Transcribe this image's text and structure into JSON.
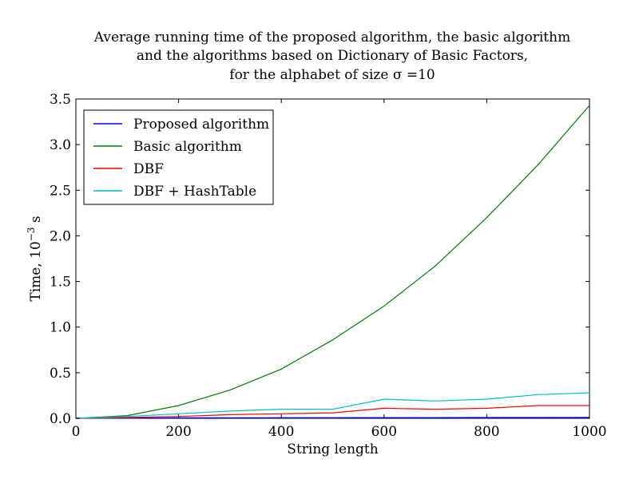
{
  "chart_data": {
    "type": "line",
    "title_lines": [
      "Average running time of the proposed algorithm, the basic algorithm",
      "and the algorithms based on Dictionary of Basic Factors,",
      "for the alphabet of size σ =10"
    ],
    "xlabel": "String length",
    "ylabel": "Time, 10",
    "ylabel_exponent": "−3",
    "ylabel_unit": " s",
    "xlim": [
      0,
      1000
    ],
    "ylim": [
      0,
      3.5
    ],
    "xticks": [
      0,
      200,
      400,
      600,
      800,
      1000
    ],
    "xtick_labels": [
      "0",
      "200",
      "400",
      "600",
      "800",
      "1000"
    ],
    "yticks": [
      0,
      0.5,
      1,
      1.5,
      2,
      2.5,
      3,
      3.5
    ],
    "ytick_labels": [
      "0.0",
      "0.5",
      "1.0",
      "1.5",
      "2.0",
      "2.5",
      "3.0",
      "3.5"
    ],
    "grid": false,
    "legend_position": "top-left",
    "x": [
      0,
      100,
      200,
      300,
      400,
      500,
      600,
      700,
      800,
      900,
      1000
    ],
    "series": [
      {
        "name": "Proposed algorithm",
        "color": "#0000ff",
        "values": [
          0.0,
          0.003,
          0.005,
          0.006,
          0.007,
          0.007,
          0.008,
          0.008,
          0.009,
          0.009,
          0.01
        ]
      },
      {
        "name": "Basic algorithm",
        "color": "#008000",
        "values": [
          0.0,
          0.03,
          0.14,
          0.31,
          0.54,
          0.86,
          1.23,
          1.67,
          2.2,
          2.78,
          3.43
        ]
      },
      {
        "name": "DBF",
        "color": "#ff0000",
        "values": [
          0.0,
          0.01,
          0.02,
          0.04,
          0.05,
          0.06,
          0.11,
          0.1,
          0.11,
          0.14,
          0.14
        ]
      },
      {
        "name": "DBF + HashTable",
        "color": "#00bfbf",
        "values": [
          0.0,
          0.02,
          0.05,
          0.08,
          0.1,
          0.1,
          0.21,
          0.19,
          0.21,
          0.26,
          0.28
        ]
      }
    ]
  }
}
